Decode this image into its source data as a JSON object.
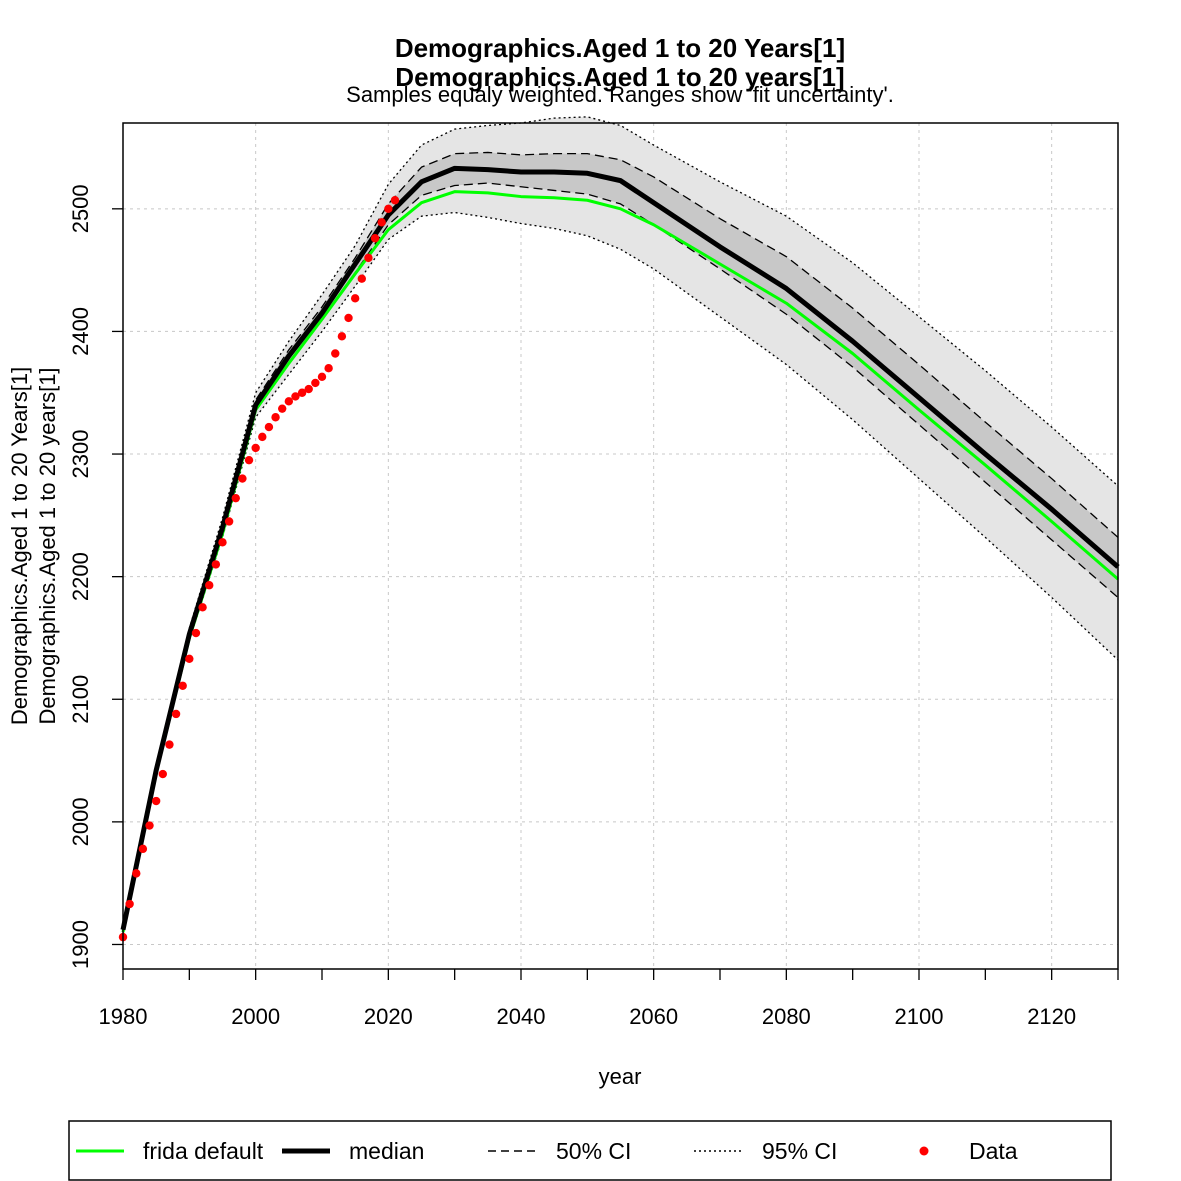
{
  "chart_data": {
    "type": "line",
    "title_lines": [
      "Demographics.Aged 1 to 20 Years[1]",
      "Demographics.Aged 1 to 20 years[1]"
    ],
    "subtitle": "Samples equaly weighted. Ranges show 'fit uncertainty'.",
    "xlabel": "year",
    "ylabel_lines": [
      "Demographics.Aged 1 to 20 Years[1]",
      "Demographics.Aged 1 to 20 years[1]"
    ],
    "xlim": [
      1980,
      2130
    ],
    "ylim": [
      1880,
      2570
    ],
    "x_ticks": [
      1980,
      1990,
      2000,
      2010,
      2020,
      2030,
      2040,
      2050,
      2060,
      2070,
      2080,
      2090,
      2100,
      2110,
      2120,
      2130
    ],
    "x_tick_labels": [
      "1980",
      "2000",
      "2020",
      "2040",
      "2060",
      "2080",
      "2100",
      "2120"
    ],
    "y_tick_labels": [
      "1900",
      "2000",
      "2100",
      "2200",
      "2300",
      "2400",
      "2500"
    ],
    "grid": true,
    "legend_position": "bottom",
    "legend": [
      {
        "label": "frida default",
        "style": "green-line"
      },
      {
        "label": "median",
        "style": "thick-black-line"
      },
      {
        "label": "50% CI",
        "style": "dashed-line"
      },
      {
        "label": "95% CI",
        "style": "dotted-line"
      },
      {
        "label": "Data",
        "style": "red-point"
      }
    ],
    "colors": {
      "frida_default": "#00ff00",
      "median": "#000000",
      "data": "#ff0000",
      "band_95": "#e5e5e5",
      "band_50": "#c8c8c8",
      "grid": "#c8c8c8"
    },
    "series": [
      {
        "name": "frida default",
        "x": [
          1980,
          1985,
          1990,
          1995,
          2000,
          2005,
          2010,
          2015,
          2020,
          2025,
          2030,
          2035,
          2040,
          2045,
          2050,
          2055,
          2060,
          2070,
          2080,
          2090,
          2100,
          2110,
          2120,
          2130
        ],
        "values": [
          1910,
          2040,
          2150,
          2235,
          2336,
          2374,
          2410,
          2447,
          2483,
          2505,
          2514,
          2513,
          2510,
          2509,
          2507,
          2500,
          2487,
          2455,
          2423,
          2382,
          2336,
          2291,
          2245,
          2198
        ]
      },
      {
        "name": "median",
        "x": [
          1980,
          1985,
          1990,
          1995,
          2000,
          2005,
          2010,
          2015,
          2020,
          2025,
          2030,
          2035,
          2040,
          2045,
          2050,
          2055,
          2060,
          2070,
          2080,
          2090,
          2100,
          2110,
          2120,
          2130
        ],
        "values": [
          1912,
          2042,
          2153,
          2240,
          2340,
          2380,
          2415,
          2455,
          2495,
          2522,
          2533,
          2532,
          2530,
          2530,
          2529,
          2523,
          2505,
          2469,
          2435,
          2392,
          2346,
          2300,
          2255,
          2208
        ]
      },
      {
        "name": "50% CI upper",
        "x": [
          1980,
          1985,
          1990,
          1995,
          2000,
          2005,
          2010,
          2015,
          2020,
          2025,
          2030,
          2035,
          2040,
          2045,
          2050,
          2055,
          2060,
          2070,
          2080,
          2090,
          2100,
          2110,
          2120,
          2130
        ],
        "values": [
          1913,
          2043,
          2155,
          2243,
          2344,
          2385,
          2420,
          2460,
          2504,
          2534,
          2545,
          2546,
          2544,
          2545,
          2545,
          2540,
          2526,
          2492,
          2461,
          2419,
          2373,
          2326,
          2280,
          2232
        ]
      },
      {
        "name": "50% CI lower",
        "x": [
          1980,
          1985,
          1990,
          1995,
          2000,
          2005,
          2010,
          2015,
          2020,
          2025,
          2030,
          2035,
          2040,
          2045,
          2050,
          2055,
          2060,
          2070,
          2080,
          2090,
          2100,
          2110,
          2120,
          2130
        ],
        "values": [
          1911,
          2041,
          2151,
          2237,
          2336,
          2374,
          2409,
          2448,
          2487,
          2511,
          2519,
          2521,
          2518,
          2515,
          2512,
          2504,
          2487,
          2451,
          2414,
          2371,
          2324,
          2277,
          2230,
          2183
        ]
      },
      {
        "name": "95% CI upper",
        "x": [
          1980,
          1985,
          1990,
          1995,
          2000,
          2005,
          2010,
          2015,
          2020,
          2025,
          2030,
          2035,
          2040,
          2045,
          2050,
          2055,
          2060,
          2070,
          2080,
          2090,
          2100,
          2110,
          2120,
          2130
        ],
        "values": [
          1915,
          2046,
          2158,
          2248,
          2350,
          2392,
          2430,
          2470,
          2520,
          2552,
          2565,
          2568,
          2570,
          2574,
          2575,
          2568,
          2552,
          2522,
          2494,
          2456,
          2412,
          2368,
          2322,
          2274
        ]
      },
      {
        "name": "95% CI lower",
        "x": [
          1980,
          1985,
          1990,
          1995,
          2000,
          2005,
          2010,
          2015,
          2020,
          2025,
          2030,
          2035,
          2040,
          2045,
          2050,
          2055,
          2060,
          2070,
          2080,
          2090,
          2100,
          2110,
          2120,
          2130
        ],
        "values": [
          1909,
          2038,
          2148,
          2232,
          2330,
          2365,
          2400,
          2437,
          2475,
          2494,
          2497,
          2493,
          2488,
          2484,
          2478,
          2467,
          2451,
          2412,
          2373,
          2328,
          2280,
          2232,
          2183,
          2132
        ]
      },
      {
        "name": "Data",
        "x": [
          1980,
          1981,
          1982,
          1983,
          1984,
          1985,
          1986,
          1987,
          1988,
          1989,
          1990,
          1991,
          1992,
          1993,
          1994,
          1995,
          1996,
          1997,
          1998,
          1999,
          2000,
          2001,
          2002,
          2003,
          2004,
          2005,
          2006,
          2007,
          2008,
          2009,
          2010,
          2011,
          2012,
          2013,
          2014,
          2015,
          2016,
          2017,
          2018,
          2019,
          2020,
          2021
        ],
        "values": [
          1906,
          1933,
          1958,
          1978,
          1997,
          2017,
          2039,
          2063,
          2088,
          2111,
          2133,
          2154,
          2175,
          2193,
          2210,
          2228,
          2245,
          2264,
          2280,
          2295,
          2305,
          2314,
          2322,
          2330,
          2337,
          2343,
          2347,
          2350,
          2353,
          2358,
          2363,
          2370,
          2382,
          2396,
          2411,
          2427,
          2443,
          2460,
          2476,
          2489,
          2500,
          2507
        ]
      }
    ]
  }
}
